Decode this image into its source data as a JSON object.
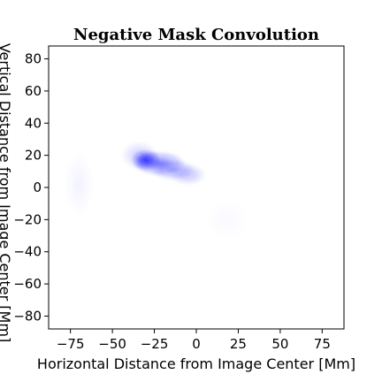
{
  "chart_data": {
    "type": "heatmap",
    "title": "Negative Mask Convolution",
    "xlabel": "Horizontal Distance from Image Center [Mm]",
    "ylabel": "Vertical Distance from Image Center [Mm]",
    "xlim": [
      -88,
      88
    ],
    "ylim": [
      -88,
      88
    ],
    "xticks": [
      -75,
      -50,
      -25,
      0,
      25,
      50,
      75
    ],
    "yticks": [
      -80,
      -60,
      -40,
      -20,
      0,
      20,
      40,
      60,
      80
    ],
    "xtick_labels": [
      "−75",
      "−50",
      "−25",
      "0",
      "25",
      "50",
      "75"
    ],
    "ytick_labels": [
      "−80",
      "−60",
      "−40",
      "−20",
      "0",
      "20",
      "40",
      "60",
      "80"
    ],
    "grid": false,
    "colors": {
      "blob": "#1a1aff",
      "axes": "#000000",
      "background": "#ffffff"
    },
    "blobs": [
      {
        "x": -30,
        "y": 17,
        "sx": 4,
        "sy": 3,
        "intensity": 0.85
      },
      {
        "x": -22,
        "y": 15,
        "sx": 7,
        "sy": 3.5,
        "intensity": 0.55
      },
      {
        "x": -14,
        "y": 11,
        "sx": 6,
        "sy": 3,
        "intensity": 0.35
      },
      {
        "x": -5,
        "y": 8,
        "sx": 5,
        "sy": 3,
        "intensity": 0.25
      },
      {
        "x": -34,
        "y": 20,
        "sx": 5,
        "sy": 4,
        "intensity": 0.2
      },
      {
        "x": -70,
        "y": 2,
        "sx": 4,
        "sy": 9,
        "intensity": 0.05
      },
      {
        "x": 18,
        "y": -20,
        "sx": 6,
        "sy": 6,
        "intensity": 0.02
      }
    ]
  }
}
